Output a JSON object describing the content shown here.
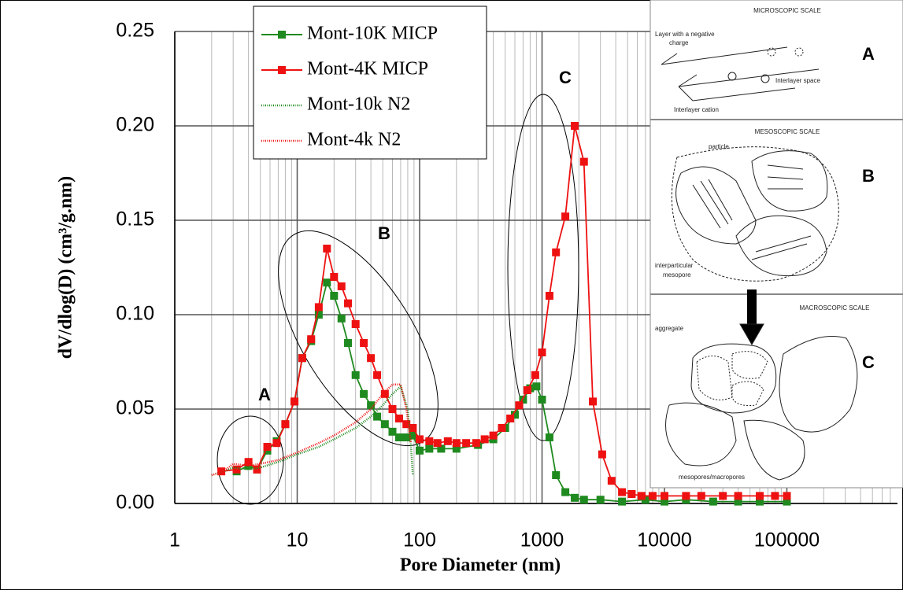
{
  "chart_data": {
    "type": "line",
    "xlabel": "Pore Diameter (nm)",
    "ylabel": "dV/dlog(D) (cm³/g.nm)",
    "xscale": "log",
    "xlim": [
      1,
      800000
    ],
    "ylim": [
      0,
      0.25
    ],
    "xticks": [
      1,
      10,
      100,
      1000,
      10000,
      100000
    ],
    "yticks": [
      {
        "value": 0,
        "label": "0.00"
      },
      {
        "value": 0.05,
        "label": "0.05"
      },
      {
        "value": 0.1,
        "label": "0.10"
      },
      {
        "value": 0.15,
        "label": "0.15"
      },
      {
        "value": 0.2,
        "label": "0.20"
      },
      {
        "value": 0.25,
        "label": "0.25"
      }
    ],
    "grid": true,
    "minor_grid": true,
    "legend": "upper left",
    "series": [
      {
        "name": "Mont-10K MICP",
        "color": "#1f8a1f",
        "marker": "square",
        "style": "solid",
        "x": [
          3.2,
          4,
          4.7,
          5.7,
          6.8,
          8,
          9.5,
          11,
          13,
          15,
          17.5,
          20,
          23,
          26,
          30,
          35,
          40,
          45,
          52,
          60,
          68,
          78,
          88,
          100,
          120,
          150,
          200,
          300,
          400,
          500,
          600,
          700,
          800,
          900,
          1000,
          1150,
          1300,
          1550,
          1850,
          2200,
          3000,
          4500,
          7000,
          10000,
          15000,
          25000,
          40000,
          60000,
          100000
        ],
        "values": [
          0.017,
          0.02,
          0.018,
          0.028,
          0.033,
          0.042,
          0.054,
          0.077,
          0.086,
          0.1,
          0.117,
          0.11,
          0.098,
          0.085,
          0.068,
          0.058,
          0.052,
          0.046,
          0.042,
          0.038,
          0.035,
          0.035,
          0.036,
          0.028,
          0.029,
          0.029,
          0.029,
          0.031,
          0.034,
          0.04,
          0.047,
          0.055,
          0.061,
          0.062,
          0.055,
          0.035,
          0.015,
          0.006,
          0.003,
          0.002,
          0.002,
          0.001,
          0.002,
          0.001,
          0.002,
          0.001,
          0.001,
          0.001,
          0.001
        ]
      },
      {
        "name": "Mont-4K MICP",
        "color": "#ee1111",
        "marker": "square",
        "style": "solid",
        "x": [
          2.4,
          3.2,
          4,
          4.7,
          5.7,
          6.8,
          8,
          9.5,
          11,
          13,
          15,
          17.5,
          20,
          23,
          26,
          30,
          35,
          40,
          45,
          52,
          60,
          68,
          78,
          88,
          100,
          120,
          140,
          170,
          200,
          240,
          290,
          340,
          400,
          470,
          550,
          650,
          760,
          880,
          1000,
          1150,
          1300,
          1550,
          1850,
          2200,
          2600,
          3100,
          3700,
          4500,
          5400,
          6500,
          8000,
          10000,
          15000,
          20000,
          30000,
          40000,
          60000,
          80000,
          100000
        ],
        "values": [
          0.017,
          0.018,
          0.022,
          0.018,
          0.03,
          0.032,
          0.042,
          0.054,
          0.077,
          0.087,
          0.104,
          0.135,
          0.12,
          0.115,
          0.106,
          0.095,
          0.085,
          0.077,
          0.068,
          0.058,
          0.05,
          0.045,
          0.042,
          0.04,
          0.034,
          0.033,
          0.032,
          0.033,
          0.032,
          0.032,
          0.032,
          0.034,
          0.036,
          0.04,
          0.045,
          0.052,
          0.06,
          0.068,
          0.08,
          0.11,
          0.133,
          0.152,
          0.2,
          0.181,
          0.054,
          0.026,
          0.012,
          0.006,
          0.005,
          0.004,
          0.004,
          0.004,
          0.004,
          0.004,
          0.004,
          0.004,
          0.004,
          0.004,
          0.004
        ]
      },
      {
        "name": "Mont-10k N2",
        "color": "#1f8a1f",
        "marker": "none",
        "style": "dotted",
        "x": [
          2,
          2.5,
          3,
          4,
          5,
          7,
          10,
          15,
          20,
          30,
          40,
          50,
          60,
          70,
          80,
          85,
          88
        ],
        "values": [
          0.015,
          0.017,
          0.019,
          0.018,
          0.019,
          0.022,
          0.026,
          0.03,
          0.034,
          0.04,
          0.046,
          0.052,
          0.058,
          0.062,
          0.05,
          0.03,
          0.015
        ]
      },
      {
        "name": "Mont-4k N2",
        "color": "#ee1111",
        "marker": "none",
        "style": "dotted",
        "x": [
          2,
          2.5,
          3,
          4,
          5,
          7,
          10,
          15,
          20,
          30,
          40,
          50,
          60,
          70,
          78,
          85
        ],
        "values": [
          0.015,
          0.017,
          0.021,
          0.02,
          0.021,
          0.023,
          0.027,
          0.032,
          0.036,
          0.043,
          0.05,
          0.058,
          0.063,
          0.063,
          0.05,
          0.032
        ]
      }
    ],
    "annotations": [
      "A",
      "B",
      "C"
    ],
    "inset": [
      {
        "title": "MICROSCOPIC SCALE",
        "letter": "A",
        "labels": [
          "Layer with a negative",
          "charge",
          "Interlayer space",
          "Interlayer cation"
        ]
      },
      {
        "title": "MESOSCOPIC SCALE",
        "letter": "B",
        "labels": [
          "particle",
          "interparticular",
          "mesopore"
        ]
      },
      {
        "title": "MACROSCOPIC SCALE",
        "letter": "C",
        "labels": [
          "aggregate",
          "mesopores/macropores"
        ]
      }
    ]
  }
}
